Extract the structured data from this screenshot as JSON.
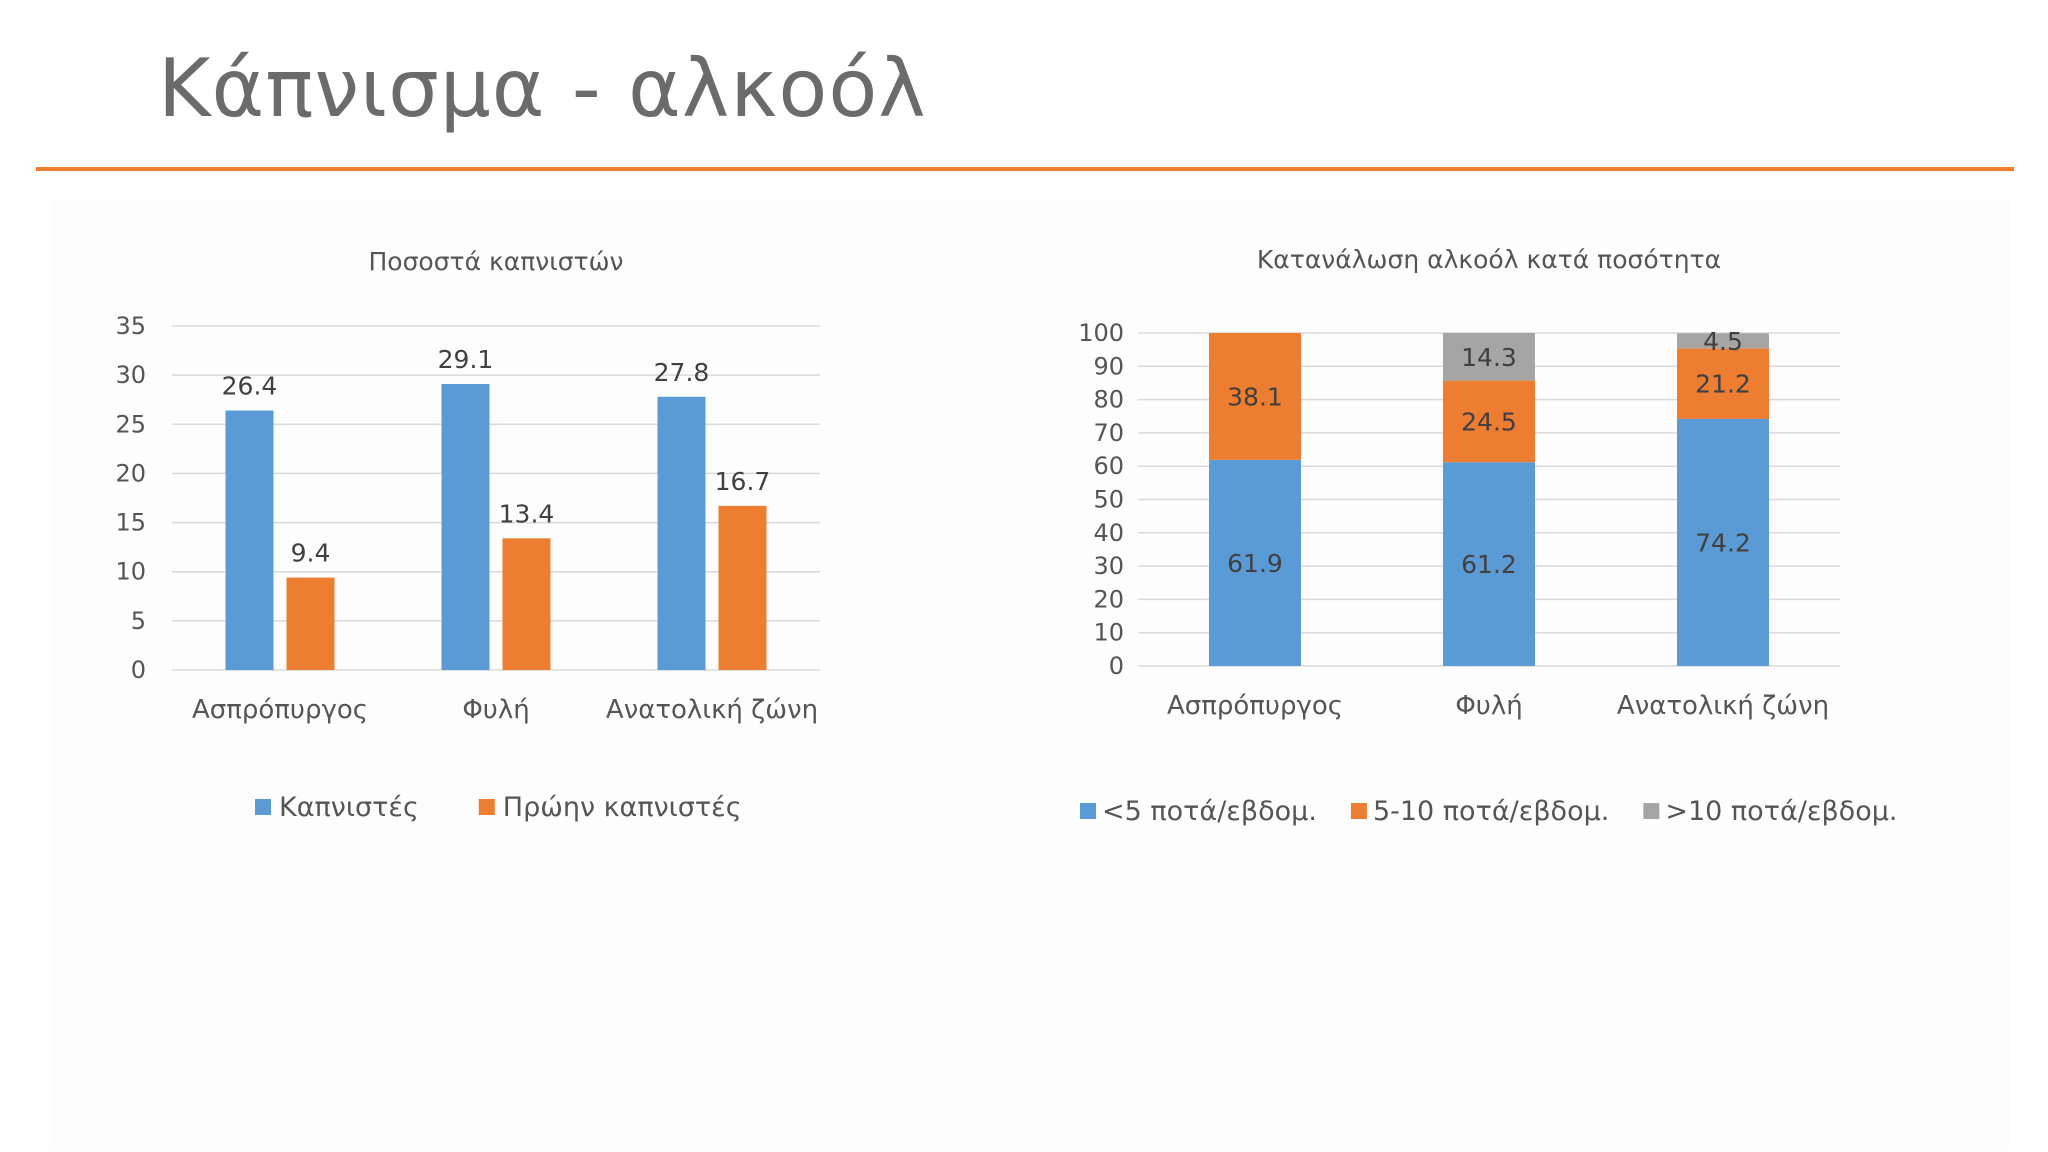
{
  "slide": {
    "title": "Κάπνισμα - αλκοόλ"
  },
  "colors": {
    "blue": "#5b9bd5",
    "orange": "#ed7d31",
    "gray": "#a5a5a5",
    "rule": "#ed7d31"
  },
  "chart_data": [
    {
      "type": "bar",
      "title": "Ποσοστά καπνιστών",
      "xlabel": "",
      "ylabel": "",
      "categories": [
        "Ασπρόπυργος",
        "Φυλή",
        "Ανατολική ζώνη"
      ],
      "series": [
        {
          "name": "Καπνιστές",
          "values": [
            26.4,
            29.1,
            27.8
          ],
          "color": "#5b9bd5"
        },
        {
          "name": "Πρώην καπνιστές",
          "values": [
            9.4,
            13.4,
            16.7
          ],
          "color": "#ed7d31"
        }
      ],
      "ylim": [
        0,
        35
      ],
      "yticks": [
        0,
        5,
        10,
        15,
        20,
        25,
        30,
        35
      ],
      "grid": true,
      "legend": "bottom",
      "data_labels": true
    },
    {
      "type": "bar",
      "stacked": true,
      "title": "Κατανάλωση αλκοόλ κατά ποσότητα",
      "xlabel": "",
      "ylabel": "",
      "categories": [
        "Ασπρόπυργος",
        "Φυλή",
        "Ανατολική ζώνη"
      ],
      "series": [
        {
          "name": "<5 ποτά/εβδομ.",
          "values": [
            61.9,
            61.2,
            74.2
          ],
          "color": "#5b9bd5"
        },
        {
          "name": "5-10 ποτά/εβδομ.",
          "values": [
            38.1,
            24.5,
            21.2
          ],
          "color": "#ed7d31"
        },
        {
          "name": ">10 ποτά/εβδομ.",
          "values": [
            0,
            14.3,
            4.5
          ],
          "color": "#a5a5a5"
        }
      ],
      "ylim": [
        0,
        100
      ],
      "yticks": [
        0,
        10,
        20,
        30,
        40,
        50,
        60,
        70,
        80,
        90,
        100
      ],
      "grid": true,
      "legend": "bottom",
      "data_labels": true
    }
  ]
}
